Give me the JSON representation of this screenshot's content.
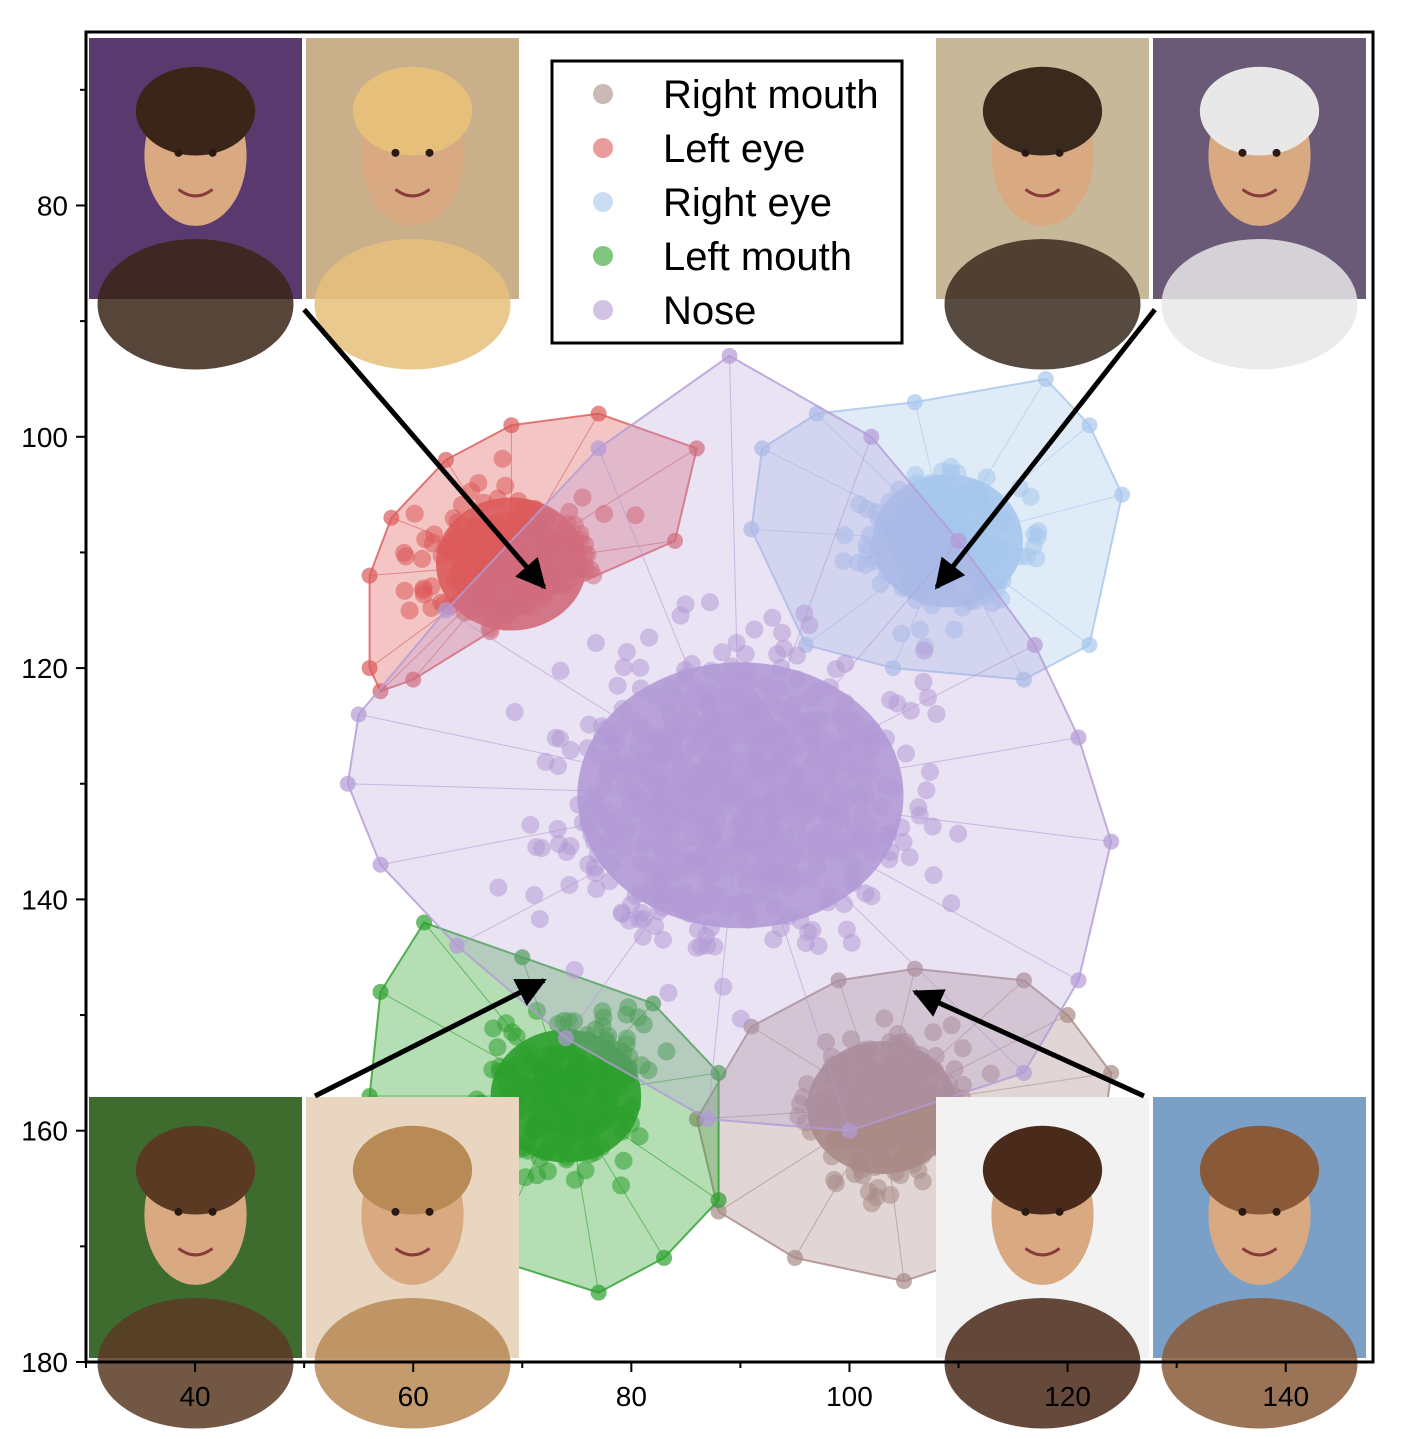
{
  "chart_data": {
    "type": "scatter",
    "title": "",
    "xlabel": "",
    "ylabel": "",
    "xlim": [
      30,
      148
    ],
    "ylim": [
      180,
      65
    ],
    "y_inverted": true,
    "x_ticks": [
      40,
      60,
      80,
      100,
      120,
      140
    ],
    "y_ticks": [
      80,
      100,
      120,
      140,
      160,
      180
    ],
    "grid": false,
    "legend_position": "top-center",
    "series": [
      {
        "name": "Right mouth",
        "color": "#a88a86",
        "center": [
          103,
          158
        ],
        "hull": [
          [
            106,
            146
          ],
          [
            116,
            147
          ],
          [
            120,
            150
          ],
          [
            124,
            155
          ],
          [
            123,
            162
          ],
          [
            118,
            169
          ],
          [
            105,
            173
          ],
          [
            95,
            171
          ],
          [
            88,
            167
          ],
          [
            86,
            159
          ],
          [
            91,
            151
          ],
          [
            99,
            147
          ]
        ]
      },
      {
        "name": "Left eye",
        "color": "#dc5a5a",
        "center": [
          69,
          111
        ],
        "hull": [
          [
            77,
            98
          ],
          [
            86,
            101
          ],
          [
            84,
            109
          ],
          [
            72,
            114
          ],
          [
            60,
            121
          ],
          [
            57,
            122
          ],
          [
            56,
            120
          ],
          [
            56,
            112
          ],
          [
            58,
            107
          ],
          [
            63,
            102
          ],
          [
            69,
            99
          ]
        ]
      },
      {
        "name": "Right eye",
        "color": "#a6c6ec",
        "center": [
          109,
          109
        ],
        "hull": [
          [
            118,
            95
          ],
          [
            122,
            99
          ],
          [
            125,
            105
          ],
          [
            122,
            118
          ],
          [
            116,
            121
          ],
          [
            104,
            120
          ],
          [
            96,
            118
          ],
          [
            91,
            108
          ],
          [
            92,
            101
          ],
          [
            97,
            98
          ],
          [
            106,
            97
          ]
        ]
      },
      {
        "name": "Left mouth",
        "color": "#2ca02c",
        "center": [
          74,
          157
        ],
        "hull": [
          [
            61,
            142
          ],
          [
            70,
            145
          ],
          [
            82,
            149
          ],
          [
            88,
            155
          ],
          [
            88,
            166
          ],
          [
            83,
            171
          ],
          [
            77,
            174
          ],
          [
            67,
            171
          ],
          [
            60,
            164
          ],
          [
            56,
            157
          ],
          [
            57,
            148
          ]
        ]
      },
      {
        "name": "Nose",
        "color": "#b39ad6",
        "center": [
          90,
          131
        ],
        "hull": [
          [
            89,
            93
          ],
          [
            102,
            100
          ],
          [
            110,
            109
          ],
          [
            117,
            118
          ],
          [
            121,
            126
          ],
          [
            124,
            135
          ],
          [
            121,
            147
          ],
          [
            116,
            155
          ],
          [
            100,
            160
          ],
          [
            87,
            159
          ],
          [
            74,
            152
          ],
          [
            64,
            144
          ],
          [
            57,
            137
          ],
          [
            54,
            130
          ],
          [
            55,
            124
          ],
          [
            63,
            115
          ],
          [
            77,
            101
          ]
        ]
      }
    ],
    "annotations": [
      {
        "kind": "arrow",
        "from": [
          50,
          89
        ],
        "to": [
          72,
          113
        ]
      },
      {
        "kind": "arrow",
        "from": [
          128,
          89
        ],
        "to": [
          108,
          113
        ]
      },
      {
        "kind": "arrow",
        "from": [
          51,
          157
        ],
        "to": [
          72,
          147
        ]
      },
      {
        "kind": "arrow",
        "from": [
          127,
          157
        ],
        "to": [
          106,
          148
        ]
      }
    ],
    "image_insets": [
      {
        "position": "top-left",
        "count": 2
      },
      {
        "position": "top-right",
        "count": 2
      },
      {
        "position": "bottom-left",
        "count": 2
      },
      {
        "position": "bottom-right",
        "count": 2
      }
    ]
  }
}
